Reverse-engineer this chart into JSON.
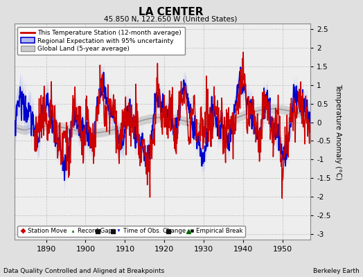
{
  "title": "LA CENTER",
  "subtitle": "45.850 N, 122.650 W (United States)",
  "ylabel": "Temperature Anomaly (°C)",
  "xlabel_bottom": "Data Quality Controlled and Aligned at Breakpoints",
  "xlabel_right": "Berkeley Earth",
  "year_start": 1882,
  "year_end": 1957,
  "ylim": [
    -3.15,
    2.65
  ],
  "yticks": [
    -3,
    -2.5,
    -2,
    -1.5,
    -1,
    -0.5,
    0,
    0.5,
    1,
    1.5,
    2,
    2.5
  ],
  "xticks": [
    1890,
    1900,
    1910,
    1920,
    1930,
    1940,
    1950
  ],
  "red_color": "#cc0000",
  "blue_color": "#0000cc",
  "blue_fill_color": "#b0b8ee",
  "gray_color": "#999999",
  "gray_fill_color": "#cccccc",
  "bg_color": "#e0e0e0",
  "plot_bg": "#eeeeee",
  "marker_colors": {
    "station_move": "#cc0000",
    "record_gap": "#006600",
    "time_obs": "#0000cc",
    "empirical_break": "#111111"
  },
  "markers": {
    "station_move": [],
    "record_gap": [
      1926
    ],
    "time_obs": [],
    "empirical_break": [
      1903,
      1907,
      1921
    ]
  },
  "red_seed": 10,
  "blue_seed": 20,
  "gray_seed": 30
}
